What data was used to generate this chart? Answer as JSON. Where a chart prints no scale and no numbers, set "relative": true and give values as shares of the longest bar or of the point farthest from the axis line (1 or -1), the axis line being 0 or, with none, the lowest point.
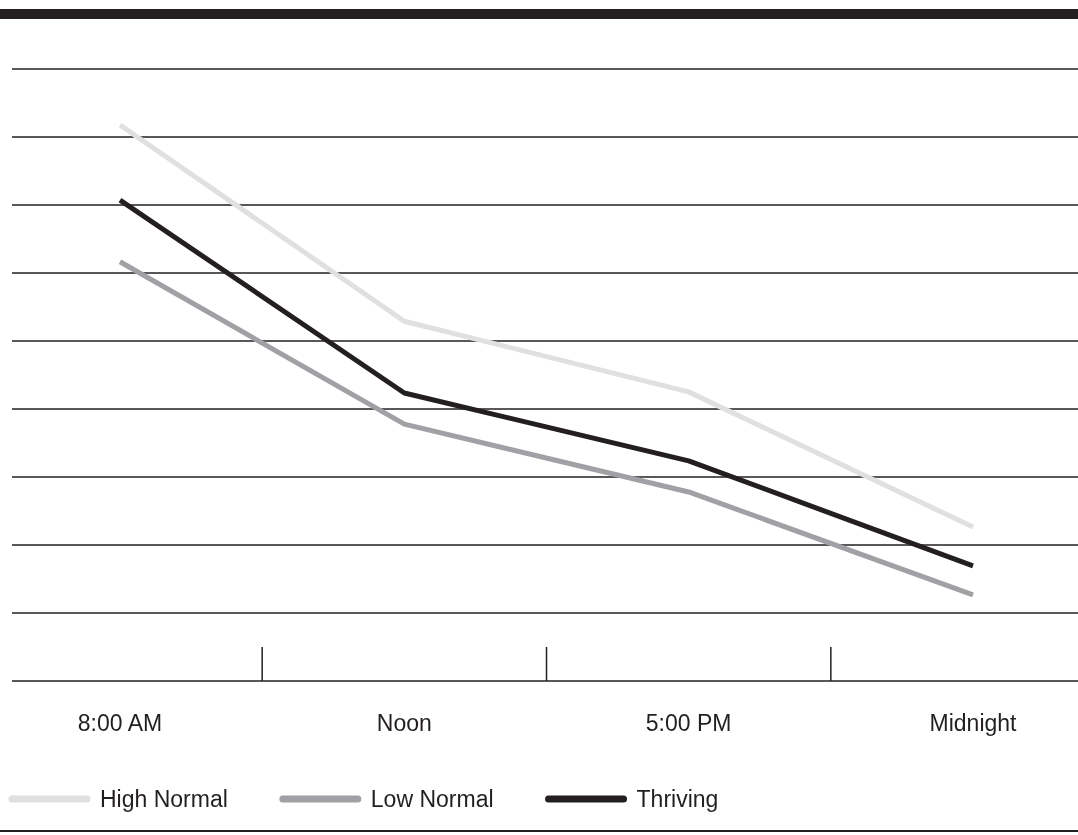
{
  "chart_data": {
    "type": "line",
    "relative": true,
    "categories": [
      "8:00 AM",
      "Noon",
      "5:00 PM",
      "Midnight"
    ],
    "series": [
      {
        "name": "High Normal",
        "color": "#e0e0e0",
        "values": [
          1,
          0.647,
          0.52,
          0.277
        ]
      },
      {
        "name": "Low Normal",
        "color": "#a0a0a5",
        "values": [
          0.754,
          0.462,
          0.34,
          0.155
        ]
      },
      {
        "name": "Thriving",
        "color": "#231f20",
        "values": [
          0.865,
          0.518,
          0.396,
          0.207
        ]
      }
    ],
    "grid": "y",
    "legend": "bottom",
    "marker": "none",
    "line_style": "solid"
  }
}
